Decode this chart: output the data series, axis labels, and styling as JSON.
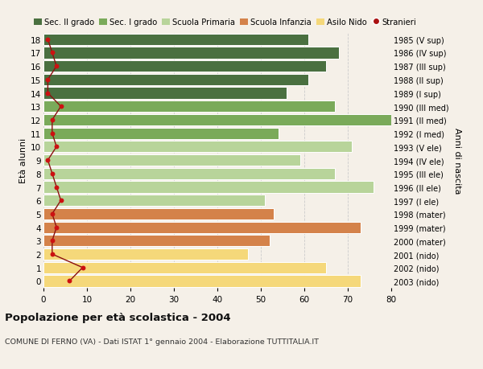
{
  "ages": [
    18,
    17,
    16,
    15,
    14,
    13,
    12,
    11,
    10,
    9,
    8,
    7,
    6,
    5,
    4,
    3,
    2,
    1,
    0
  ],
  "right_labels": [
    "1985 (V sup)",
    "1986 (IV sup)",
    "1987 (III sup)",
    "1988 (II sup)",
    "1989 (I sup)",
    "1990 (III med)",
    "1991 (II med)",
    "1992 (I med)",
    "1993 (V ele)",
    "1994 (IV ele)",
    "1995 (III ele)",
    "1996 (II ele)",
    "1997 (I ele)",
    "1998 (mater)",
    "1999 (mater)",
    "2000 (mater)",
    "2001 (nido)",
    "2002 (nido)",
    "2003 (nido)"
  ],
  "bar_values": [
    61,
    68,
    65,
    61,
    56,
    67,
    80,
    54,
    71,
    59,
    67,
    76,
    51,
    53,
    73,
    52,
    47,
    65,
    73
  ],
  "bar_colors": [
    "#4a7040",
    "#4a7040",
    "#4a7040",
    "#4a7040",
    "#4a7040",
    "#7aaa5a",
    "#7aaa5a",
    "#7aaa5a",
    "#b8d49a",
    "#b8d49a",
    "#b8d49a",
    "#b8d49a",
    "#b8d49a",
    "#d4824a",
    "#d4824a",
    "#d4824a",
    "#f5d87a",
    "#f5d87a",
    "#f5d87a"
  ],
  "stranieri_values": [
    1,
    2,
    3,
    1,
    1,
    4,
    2,
    2,
    3,
    1,
    2,
    3,
    4,
    2,
    3,
    2,
    2,
    9,
    6
  ],
  "legend_labels": [
    "Sec. II grado",
    "Sec. I grado",
    "Scuola Primaria",
    "Scuola Infanzia",
    "Asilo Nido",
    "Stranieri"
  ],
  "legend_colors": [
    "#4a7040",
    "#7aaa5a",
    "#b8d49a",
    "#d4824a",
    "#f5d87a",
    "#aa1111"
  ],
  "title": "Popolazione per età scolastica - 2004",
  "subtitle": "COMUNE DI FERNO (VA) - Dati ISTAT 1° gennaio 2004 - Elaborazione TUTTITALIA.IT",
  "ylabel_left": "Età alunni",
  "ylabel_right": "Anni di nascita",
  "xlim": [
    0,
    80
  ],
  "bg_color": "#f5f0e8",
  "bar_edge_color": "#ffffff",
  "grid_color": "#cccccc"
}
